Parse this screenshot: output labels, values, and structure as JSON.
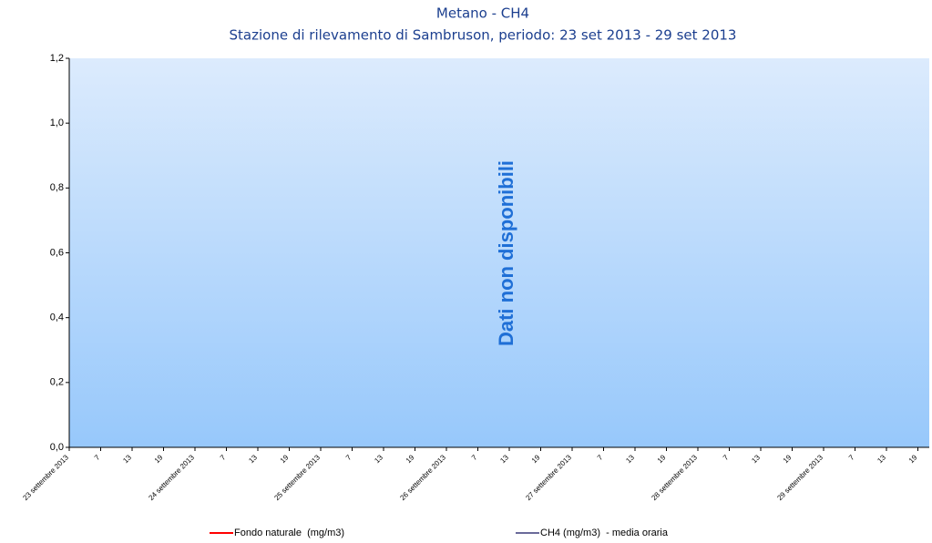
{
  "chart_data": {
    "type": "line",
    "title": "Metano - CH4",
    "subtitle": "Stazione di rilevamento di Sambruson, periodo: 23 set 2013 - 29 set 2013",
    "annotation": "Dati non disponibili",
    "categories": [
      "23 settembre 2013",
      "7",
      "13",
      "19",
      "24 settembre 2013",
      "7",
      "13",
      "19",
      "25 settembre 2013",
      "7",
      "13",
      "19",
      "26 settembre 2013",
      "7",
      "13",
      "19",
      "27 settembre 2013",
      "7",
      "13",
      "19",
      "28 settembre 2013",
      "7",
      "13",
      "19",
      "29 settembre 2013",
      "7",
      "13",
      "19"
    ],
    "series": [
      {
        "name": "Fondo naturale  (mg/m3)",
        "color": "#ff0000"
      },
      {
        "name": "CH4 (mg/m3)  - media oraria",
        "color": "#6a6a9a"
      }
    ],
    "ylim": [
      0,
      1.2
    ],
    "yticks": [
      {
        "value": 0,
        "label": "0,0"
      },
      {
        "value": 0.2,
        "label": "0,2"
      },
      {
        "value": 0.4,
        "label": "0,4"
      },
      {
        "value": 0.6,
        "label": "0,6"
      },
      {
        "value": 0.8,
        "label": "0,8"
      },
      {
        "value": 1.0,
        "label": "1,0"
      },
      {
        "value": 1.2,
        "label": "1,2"
      }
    ]
  }
}
